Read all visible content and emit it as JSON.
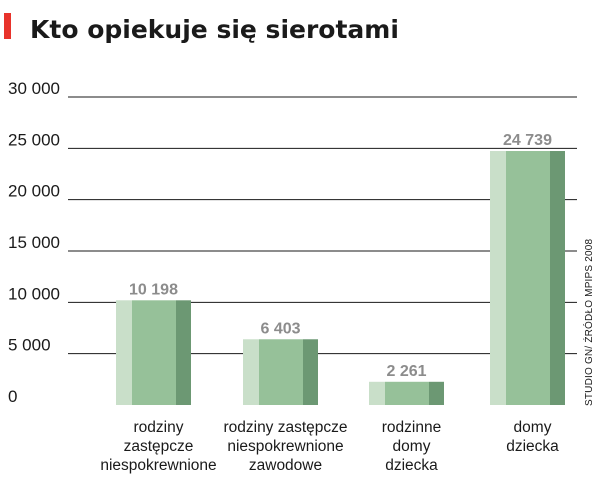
{
  "colors": {
    "accent": "#e8332b",
    "bar_light": "#c9dfc9",
    "bar_mid": "#96c199",
    "bar_dark": "#6c9873",
    "grid": "#1a1a1a",
    "value_label": "#8c8c8c"
  },
  "chart_data": {
    "type": "bar",
    "title": "Kto opiekuje się sierotami",
    "source": "STUDIO GN/ ŹRÓDŁO MPIPS 2008",
    "ylim": [
      0,
      30000
    ],
    "grid": true,
    "yticks": [
      {
        "value": 0,
        "label": "0"
      },
      {
        "value": 5000,
        "label": "5 000"
      },
      {
        "value": 10000,
        "label": "10 000"
      },
      {
        "value": 15000,
        "label": "15 000"
      },
      {
        "value": 20000,
        "label": "20 000"
      },
      {
        "value": 25000,
        "label": "25 000"
      },
      {
        "value": 30000,
        "label": "30 000"
      }
    ],
    "categories": [
      {
        "lines": [
          "rodziny",
          "zastępcze",
          "niespokrewnione"
        ]
      },
      {
        "lines": [
          "rodziny zastępcze",
          "niespokrewnione",
          "zawodowe"
        ]
      },
      {
        "lines": [
          "rodzinne",
          "domy",
          "dziecka"
        ]
      },
      {
        "lines": [
          "domy",
          "dziecka"
        ]
      }
    ],
    "values": [
      10198,
      6403,
      2261,
      24739
    ],
    "value_labels": [
      "10 198",
      "6 403",
      "2 261",
      "24 739"
    ]
  }
}
